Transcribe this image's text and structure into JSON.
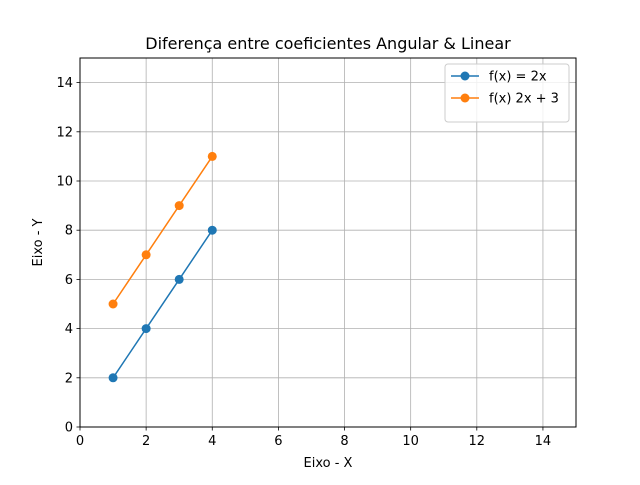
{
  "chart_data": {
    "type": "line",
    "title": "Diferença entre coeficientes Angular & Linear",
    "xlabel": "Eixo - X",
    "ylabel": "Eixo - Y",
    "xlim": [
      0,
      15
    ],
    "ylim": [
      0,
      15
    ],
    "xticks": [
      0,
      2,
      4,
      6,
      8,
      10,
      12,
      14
    ],
    "yticks": [
      0,
      2,
      4,
      6,
      8,
      10,
      12,
      14
    ],
    "grid": true,
    "legend_position": "top-right",
    "series": [
      {
        "name": "f(x) = 2x",
        "color": "#1f77b4",
        "marker": "circle",
        "x": [
          1,
          2,
          3,
          4
        ],
        "y": [
          2,
          4,
          6,
          8
        ]
      },
      {
        "name": "f(x) 2x + 3",
        "color": "#ff7f0e",
        "marker": "circle",
        "x": [
          1,
          2,
          3,
          4
        ],
        "y": [
          5,
          7,
          9,
          11
        ]
      }
    ]
  }
}
